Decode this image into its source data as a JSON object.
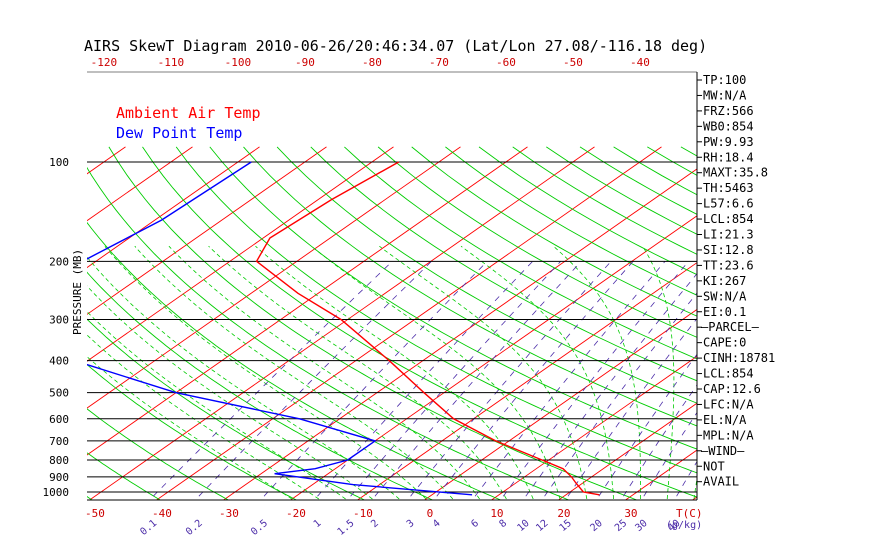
{
  "chart_data": {
    "type": "line",
    "title": "AIRS SkewT Diagram 2010-06-26/20:46:34.07 (Lat/Lon 27.08/-116.18 deg)",
    "ylabel": "PRESSURE (MB)",
    "xlabel": "T(C)",
    "mixing_ratio_unit": "(g/kg)",
    "pressure_ticks": [
      100,
      200,
      300,
      400,
      500,
      600,
      700,
      800,
      900,
      1000
    ],
    "top_temp_ticks": [
      -120,
      -110,
      -100,
      -90,
      -80,
      -70,
      -60,
      -50,
      -40
    ],
    "bottom_temp_ticks": [
      -50,
      -40,
      -30,
      -20,
      -10,
      0,
      10,
      20,
      30
    ],
    "mixing_ratio_ticks": [
      "0.1",
      "0.2",
      "0.5",
      "1",
      "1.5",
      "2",
      "3",
      "4",
      "6",
      "8",
      "10",
      "12",
      "15",
      "20",
      "25",
      "30",
      "40"
    ],
    "grid": true,
    "series": [
      {
        "name": "Ambient Air Temp",
        "color": "#ff0000",
        "points": [
          {
            "p": 100,
            "t": -76
          },
          {
            "p": 130,
            "t": -78
          },
          {
            "p": 170,
            "t": -79
          },
          {
            "p": 200,
            "t": -76
          },
          {
            "p": 250,
            "t": -63
          },
          {
            "p": 300,
            "t": -51
          },
          {
            "p": 400,
            "t": -35
          },
          {
            "p": 500,
            "t": -23
          },
          {
            "p": 600,
            "t": -13
          },
          {
            "p": 700,
            "t": -2
          },
          {
            "p": 800,
            "t": 9
          },
          {
            "p": 850,
            "t": 14
          },
          {
            "p": 900,
            "t": 17
          },
          {
            "p": 940,
            "t": 19
          },
          {
            "p": 1000,
            "t": 22
          },
          {
            "p": 1020,
            "t": 25
          }
        ]
      },
      {
        "name": "Dew Point Temp",
        "color": "#0000ff",
        "points": [
          {
            "p": 100,
            "t": -98
          },
          {
            "p": 150,
            "t": -99
          },
          {
            "p": 200,
            "t": -102
          },
          {
            "p": 300,
            "t": -106
          },
          {
            "p": 400,
            "t": -82
          },
          {
            "p": 500,
            "t": -60
          },
          {
            "p": 600,
            "t": -36
          },
          {
            "p": 700,
            "t": -20
          },
          {
            "p": 800,
            "t": -20
          },
          {
            "p": 850,
            "t": -23
          },
          {
            "p": 880,
            "t": -28
          },
          {
            "p": 950,
            "t": -14
          },
          {
            "p": 1020,
            "t": 6
          }
        ]
      }
    ],
    "indices": [
      "TP:100",
      "MW:N/A",
      "FRZ:566",
      "WB0:854",
      "PW:9.93",
      "RH:18.4",
      "MAXT:35.8",
      "TH:5463",
      "L57:6.6",
      "LCL:854",
      "LI:21.3",
      "SI:12.8",
      "TT:23.6",
      "KI:267",
      "SW:N/A",
      "EI:0.1",
      "—PARCEL—",
      "CAPE:0",
      "CINH:18781",
      "LCL:854",
      "CAP:12.6",
      "LFC:N/A",
      "EL:N/A",
      "MPL:N/A",
      "—WIND—",
      "NOT",
      "AVAIL"
    ]
  },
  "colors": {
    "isotherm": "#ff0000",
    "dry_adiabat": "#00cc00",
    "moist_adiabat": "#00cc00",
    "mixing_ratio": "#4b2ca8",
    "axis_label": "#cc0000",
    "isobar": "#000000"
  }
}
